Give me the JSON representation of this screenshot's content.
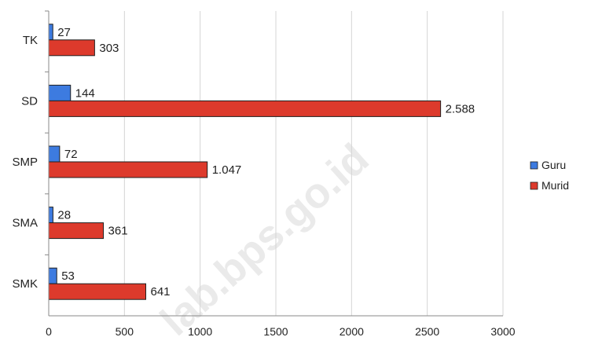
{
  "chart_data": {
    "type": "bar",
    "orientation": "horizontal",
    "categories": [
      "TK",
      "SD",
      "SMP",
      "SMA",
      "SMK"
    ],
    "series": [
      {
        "name": "Guru",
        "values": [
          27,
          144,
          72,
          28,
          53
        ],
        "labels": [
          "27",
          "144",
          "72",
          "28",
          "53"
        ],
        "color": "#3d7be0"
      },
      {
        "name": "Murid",
        "values": [
          303,
          2588,
          1047,
          361,
          641
        ],
        "labels": [
          "303",
          "2.588",
          "1.047",
          "361",
          "641"
        ],
        "color": "#dd3a2c"
      }
    ],
    "xlim": [
      0,
      3000
    ],
    "xticks": [
      0,
      500,
      1000,
      1500,
      2000,
      2500,
      3000
    ],
    "xtick_labels": [
      "0",
      "500",
      "1000",
      "1500",
      "2000",
      "2500",
      "3000"
    ],
    "grid": "vertical",
    "legend": "right",
    "title": "",
    "xlabel": "",
    "ylabel": ""
  },
  "watermark": "lab.bps.go.id"
}
